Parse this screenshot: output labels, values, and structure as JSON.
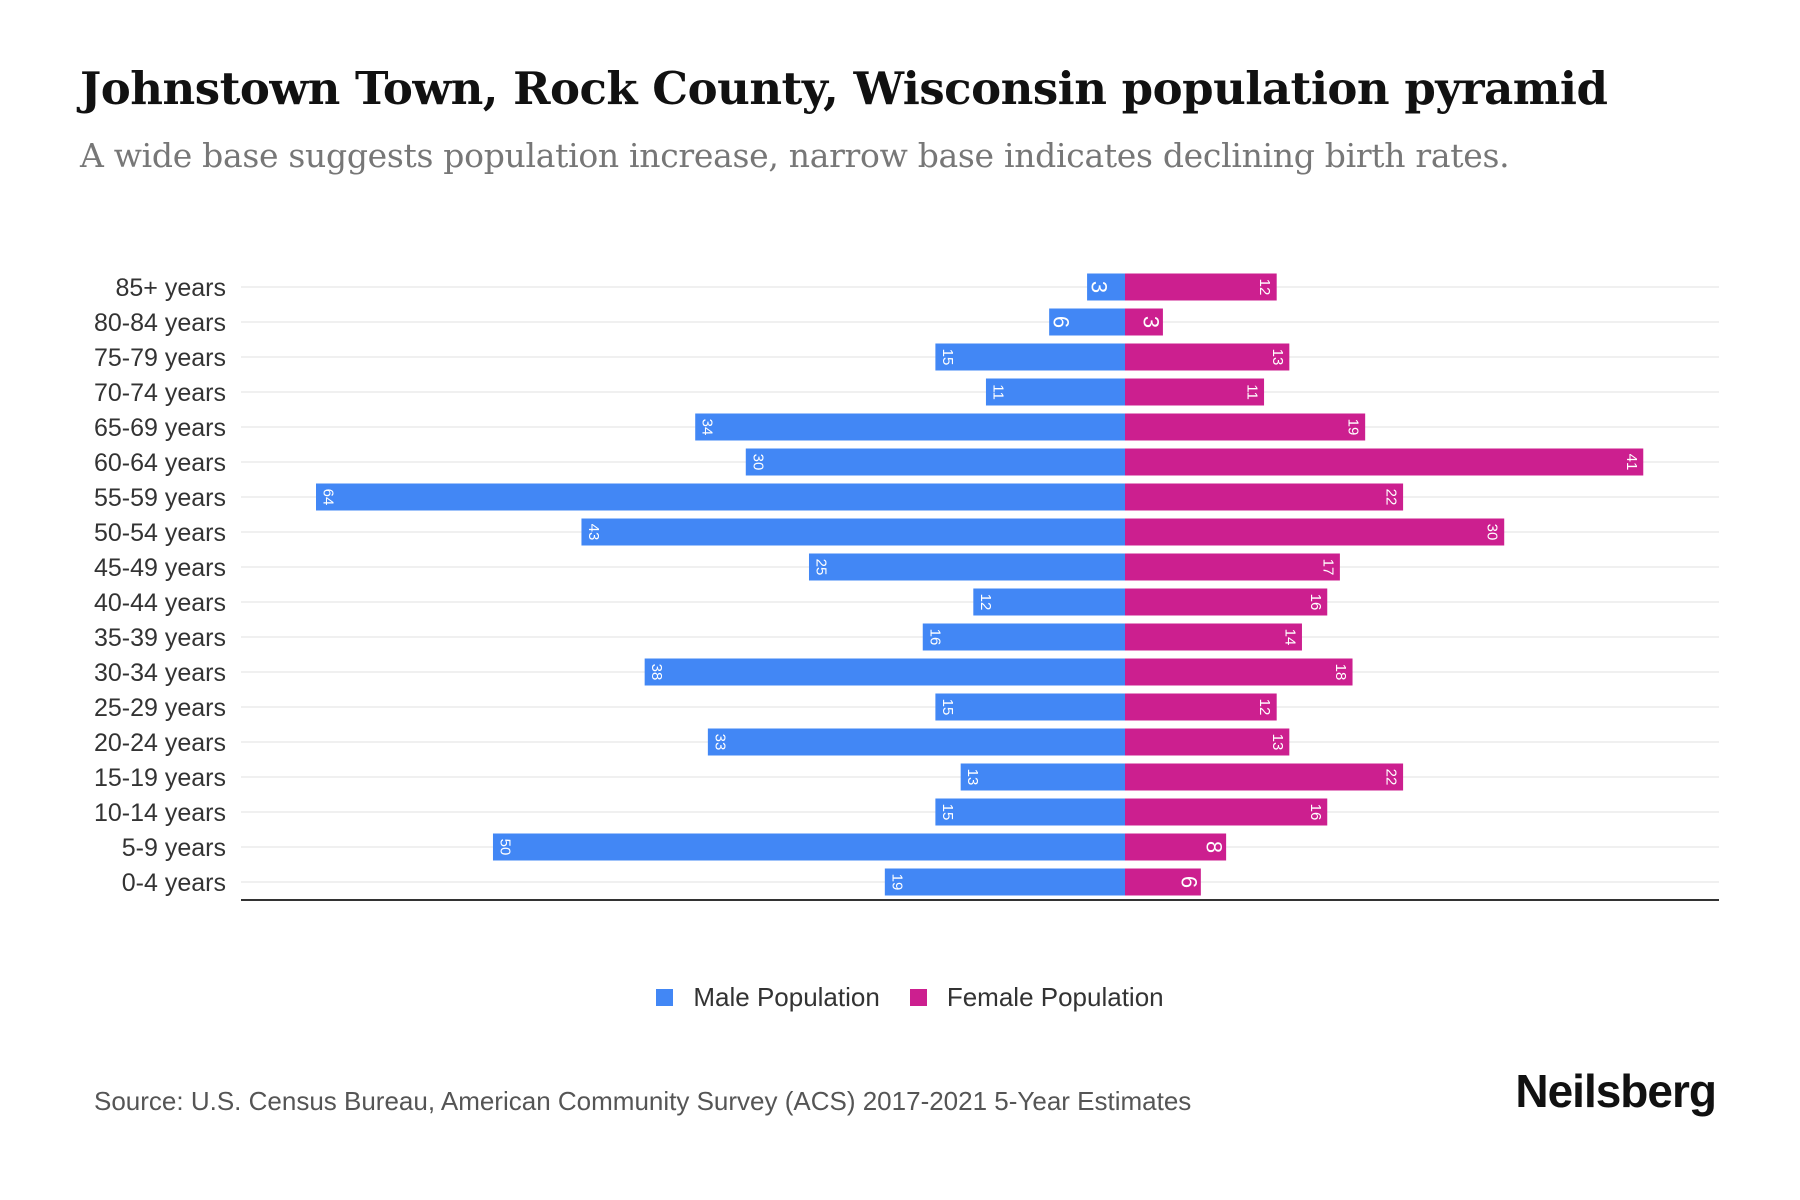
{
  "header": {
    "title": "Johnstown Town, Rock County, Wisconsin population pyramid",
    "subtitle": "A wide base suggests population increase, narrow base indicates declining birth rates."
  },
  "footer": {
    "source": "Source: U.S. Census Bureau, American Community Survey (ACS) 2017-2021 5-Year Estimates",
    "logo": "Neilsberg"
  },
  "chart_data": {
    "type": "bar",
    "orientation": "horizontal-pyramid",
    "title": "Johnstown Town, Rock County, Wisconsin population pyramid",
    "categories": [
      "85+ years",
      "80-84 years",
      "75-79 years",
      "70-74 years",
      "65-69 years",
      "60-64 years",
      "55-59 years",
      "50-54 years",
      "45-49 years",
      "40-44 years",
      "35-39 years",
      "30-34 years",
      "25-29 years",
      "20-24 years",
      "15-19 years",
      "10-14 years",
      "5-9 years",
      "0-4 years"
    ],
    "series": [
      {
        "name": "Male Population",
        "color": "#4287f5",
        "values": [
          3,
          6,
          15,
          11,
          34,
          30,
          64,
          43,
          25,
          12,
          16,
          38,
          15,
          33,
          13,
          15,
          50,
          19
        ]
      },
      {
        "name": "Female Population",
        "color": "#cc1f8f",
        "values": [
          12,
          3,
          13,
          11,
          19,
          41,
          22,
          30,
          17,
          16,
          14,
          18,
          12,
          13,
          22,
          16,
          8,
          6
        ]
      }
    ],
    "xlim": [
      -64,
      64
    ],
    "grid": true,
    "legend": "bottom-center"
  }
}
